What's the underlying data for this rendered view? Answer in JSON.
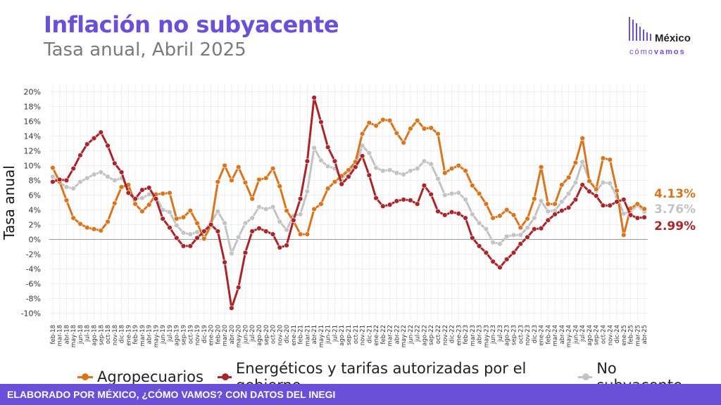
{
  "header": {
    "title": "Inflación no subyacente",
    "subtitle": "Tasa anual, Abril 2025"
  },
  "logo": {
    "word1": "México",
    "word2a": "cómo",
    "word2b": "vamos"
  },
  "footer": {
    "text": "ELABORADO POR MÉXICO, ¿CÓMO VAMOS? CON DATOS DEL INEGI"
  },
  "colors": {
    "brand": "#6a4fd8",
    "agro": "#d9751f",
    "energy": "#a8262a",
    "nosub": "#c3c3c3"
  },
  "chart_data": {
    "type": "line",
    "title": "Inflación no subyacente",
    "subtitle": "Tasa anual, Abril 2025",
    "ylabel": "Tasa anual",
    "xlabel": "",
    "ylim": [
      -11,
      21
    ],
    "yticks": [
      -10,
      -8,
      -6,
      -4,
      -2,
      0,
      2,
      4,
      6,
      8,
      10,
      12,
      14,
      16,
      18,
      20
    ],
    "grid": true,
    "legend_position": "bottom",
    "categories": [
      "feb-18",
      "mar-18",
      "abr-18",
      "may-18",
      "jun-18",
      "jul-18",
      "ago-18",
      "sep-18",
      "oct-18",
      "nov-18",
      "dic-18",
      "ene-19",
      "feb-19",
      "mar-19",
      "abr-19",
      "may-19",
      "jun-19",
      "jul-19",
      "ago-19",
      "sep-19",
      "oct-19",
      "nov-19",
      "dic-19",
      "ene-20",
      "feb-20",
      "mar-20",
      "abr-20",
      "may-20",
      "jun-20",
      "jul-20",
      "ago-20",
      "sep-20",
      "oct-20",
      "nov-20",
      "dic-20",
      "ene-21",
      "feb-21",
      "mar-21",
      "abr-21",
      "may-21",
      "jun-21",
      "jul-21",
      "ago-21",
      "sep-21",
      "oct-21",
      "nov-21",
      "dic-21",
      "ene-22",
      "feb-22",
      "mar-22",
      "abr-22",
      "may-22",
      "jun-22",
      "jul-22",
      "ago-22",
      "sep-22",
      "oct-22",
      "nov-22",
      "dic-22",
      "ene-23",
      "feb-23",
      "mar-23",
      "abr-23",
      "may-23",
      "jun-23",
      "jul-23",
      "ago-23",
      "sep-23",
      "oct-23",
      "nov-23",
      "dic-23",
      "ene-24",
      "feb-24",
      "mar-24",
      "abr-24",
      "may-24",
      "jun-24",
      "jul-24",
      "ago-24",
      "sep-24",
      "oct-24",
      "nov-24",
      "dic-24",
      "ene-25",
      "feb-25",
      "mar-25",
      "abr-25"
    ],
    "series": [
      {
        "name": "Agropecuarios",
        "color": "#d9751f",
        "end_label": "4.13%",
        "values": [
          9.7,
          7.8,
          5.3,
          2.9,
          2.1,
          1.6,
          1.4,
          1.2,
          2.4,
          4.9,
          7.1,
          7.4,
          4.8,
          3.8,
          4.7,
          6.1,
          6.2,
          6.3,
          2.8,
          3.0,
          3.9,
          2.2,
          0.1,
          1.9,
          7.8,
          10.0,
          8.0,
          9.8,
          7.7,
          5.5,
          8.1,
          8.3,
          9.6,
          7.2,
          3.9,
          2.5,
          0.7,
          0.7,
          4.1,
          4.8,
          6.9,
          7.8,
          8.6,
          9.4,
          10.5,
          14.3,
          15.8,
          15.4,
          16.2,
          16.1,
          14.4,
          13.1,
          15.0,
          16.1,
          15.0,
          15.1,
          14.3,
          9.0,
          9.6,
          10.0,
          9.3,
          7.3,
          6.2,
          4.8,
          2.9,
          3.2,
          4.0,
          3.3,
          1.6,
          2.8,
          5.5,
          9.8,
          4.8,
          4.8,
          7.4,
          8.4,
          10.4,
          13.7,
          7.9,
          6.8,
          11.0,
          10.8,
          6.6,
          0.6,
          4.2,
          4.8,
          4.13
        ]
      },
      {
        "name": "Energéticos y tarifas autorizadas por el gobierno",
        "color": "#a8262a",
        "end_label": "2.99%",
        "values": [
          7.8,
          8.1,
          8.0,
          9.6,
          11.4,
          12.9,
          13.7,
          14.5,
          12.7,
          10.3,
          9.1,
          6.3,
          5.5,
          6.7,
          7.0,
          5.5,
          2.8,
          1.6,
          0.2,
          -0.9,
          -0.9,
          0.2,
          1.1,
          2.0,
          1.1,
          -3.1,
          -9.3,
          -6.5,
          -1.8,
          1.1,
          1.5,
          1.1,
          0.7,
          -1.1,
          -0.8,
          2.6,
          5.5,
          10.6,
          19.2,
          15.9,
          12.5,
          10.6,
          7.5,
          8.5,
          9.8,
          11.3,
          8.7,
          5.6,
          4.5,
          4.7,
          5.2,
          5.4,
          5.3,
          4.8,
          7.3,
          6.1,
          3.8,
          3.3,
          3.7,
          3.5,
          2.9,
          0.2,
          -0.9,
          -1.8,
          -3.0,
          -3.8,
          -2.7,
          -1.8,
          -0.6,
          0.3,
          1.4,
          1.5,
          2.6,
          3.4,
          3.9,
          4.3,
          5.4,
          7.4,
          6.5,
          5.9,
          4.6,
          4.6,
          5.1,
          5.4,
          3.3,
          2.9,
          2.99
        ]
      },
      {
        "name": "No subyacente",
        "color": "#c3c3c3",
        "end_label": "3.76%",
        "values": [
          8.5,
          7.7,
          7.1,
          6.9,
          7.8,
          8.3,
          8.8,
          9.1,
          8.5,
          8.0,
          8.3,
          6.9,
          5.5,
          5.6,
          6.1,
          5.8,
          4.0,
          3.7,
          1.9,
          0.9,
          0.7,
          1.0,
          1.1,
          2.3,
          3.8,
          2.2,
          -1.9,
          0.3,
          2.2,
          2.9,
          4.4,
          4.1,
          4.4,
          2.4,
          1.3,
          3.2,
          3.4,
          6.5,
          12.4,
          10.7,
          9.9,
          9.6,
          8.1,
          9.2,
          10.0,
          12.7,
          11.7,
          9.7,
          9.3,
          9.4,
          9.0,
          8.8,
          9.3,
          9.6,
          10.6,
          10.2,
          8.2,
          6.0,
          6.2,
          6.3,
          5.4,
          3.4,
          2.2,
          1.4,
          -0.4,
          -0.6,
          0.4,
          0.6,
          0.6,
          1.6,
          2.9,
          5.2,
          3.8,
          3.9,
          5.1,
          6.2,
          7.7,
          10.5,
          8.0,
          6.6,
          7.7,
          7.6,
          5.8,
          3.5,
          3.8,
          4.6,
          3.76
        ]
      }
    ]
  }
}
